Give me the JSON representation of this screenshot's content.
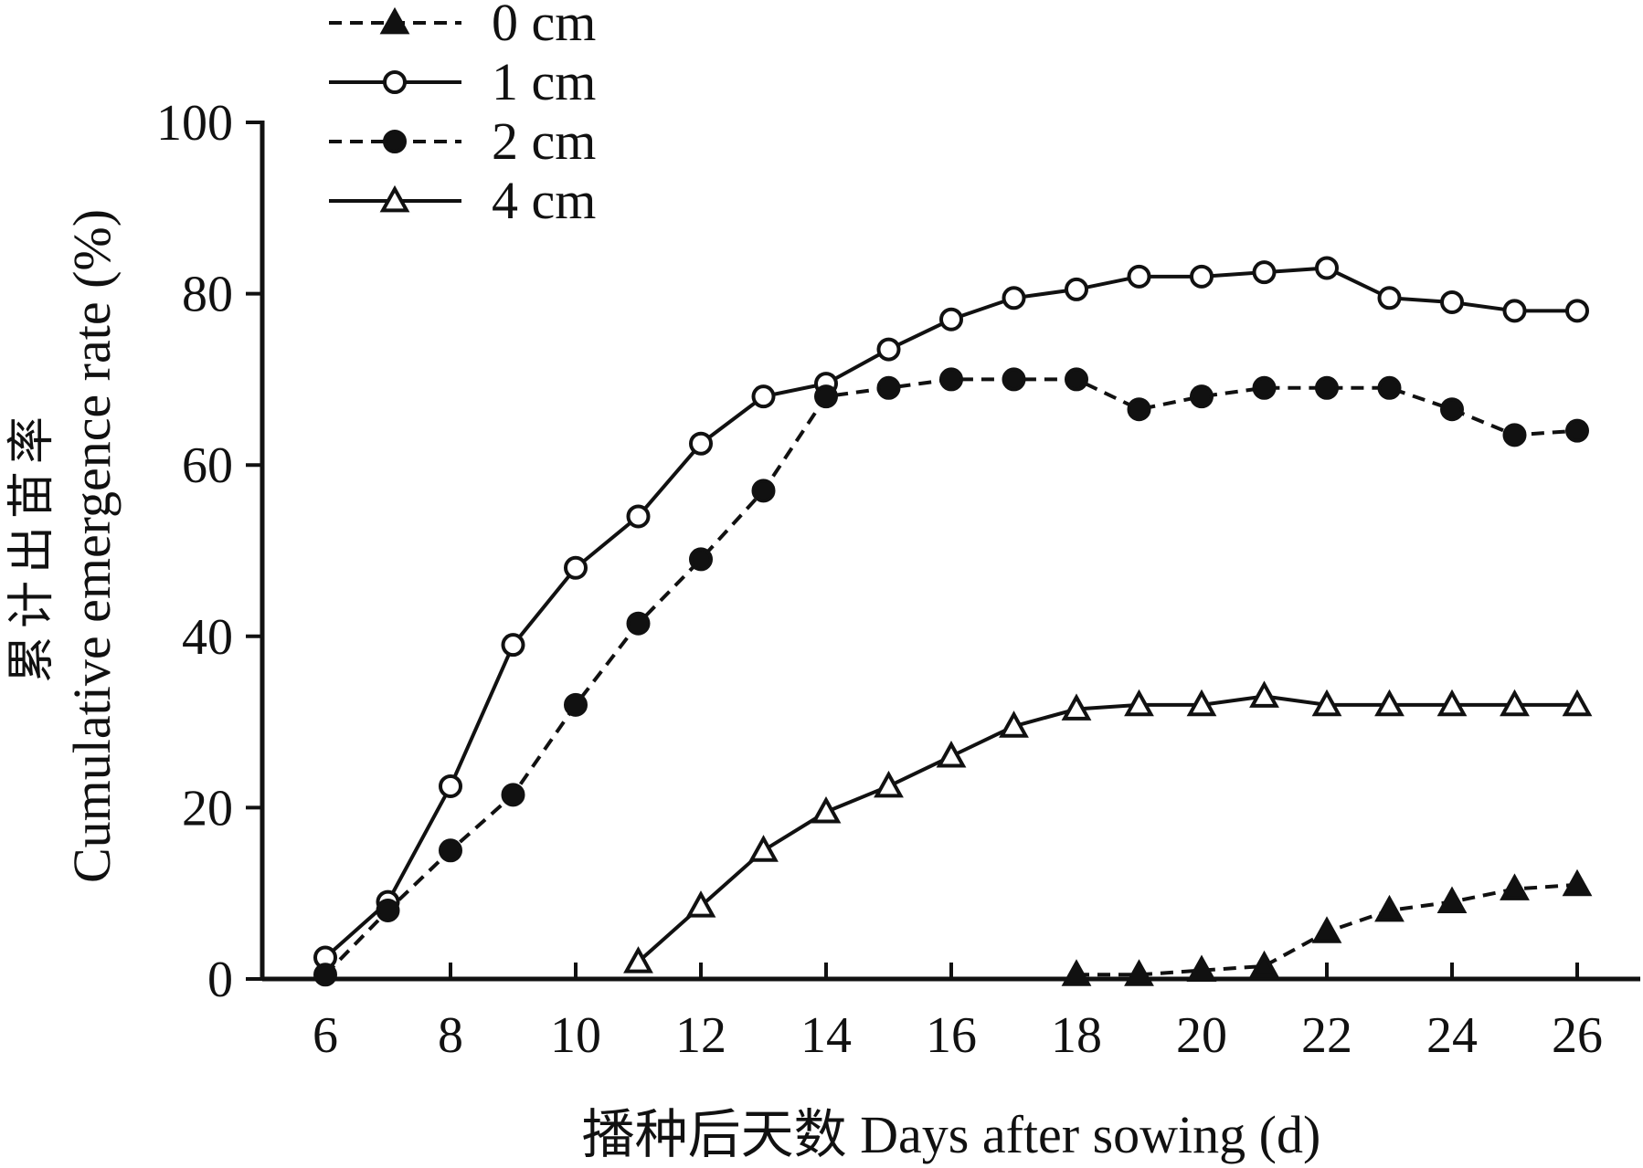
{
  "chart_data": {
    "type": "line",
    "title": "",
    "xlabel": "播种后天数 Days after sowing (d)",
    "ylabel_cn": "累计出苗率",
    "ylabel": "Cumulative emergence rate (%)",
    "xlim": [
      6,
      26
    ],
    "ylim": [
      0,
      100
    ],
    "xticks": [
      6,
      8,
      10,
      12,
      14,
      16,
      18,
      20,
      22,
      24,
      26
    ],
    "yticks": [
      0,
      20,
      40,
      60,
      80,
      100
    ],
    "grid": false,
    "legend_position": "top-left",
    "series": [
      {
        "name": "0 cm",
        "marker": "filled-triangle",
        "dash": true,
        "x": [
          18,
          19,
          20,
          21,
          22,
          23,
          24,
          25,
          26
        ],
        "y": [
          0.5,
          0.5,
          1,
          1.5,
          5.5,
          8,
          9,
          10.5,
          11
        ]
      },
      {
        "name": "1 cm",
        "marker": "open-circle",
        "dash": false,
        "x": [
          6,
          7,
          8,
          9,
          10,
          11,
          12,
          13,
          14,
          15,
          16,
          17,
          18,
          19,
          20,
          21,
          22,
          23,
          24,
          25,
          26
        ],
        "y": [
          2.5,
          9,
          22.5,
          39,
          48,
          54,
          62.5,
          68,
          69.5,
          73.5,
          77,
          79.5,
          80.5,
          82,
          82,
          82.5,
          83,
          79.5,
          79,
          78,
          78
        ]
      },
      {
        "name": "2 cm",
        "marker": "filled-circle",
        "dash": true,
        "x": [
          6,
          7,
          8,
          9,
          10,
          11,
          12,
          13,
          14,
          15,
          16,
          17,
          18,
          19,
          20,
          21,
          22,
          23,
          24,
          25,
          26
        ],
        "y": [
          0.5,
          8,
          15,
          21.5,
          32,
          41.5,
          49,
          57,
          68,
          69,
          70,
          70,
          70,
          66.5,
          68,
          69,
          69,
          69,
          66.5,
          63.5,
          64
        ]
      },
      {
        "name": "4 cm",
        "marker": "open-triangle",
        "dash": false,
        "x": [
          11,
          12,
          13,
          14,
          15,
          16,
          17,
          18,
          19,
          20,
          21,
          22,
          23,
          24,
          25,
          26
        ],
        "y": [
          2,
          8.5,
          15,
          19.5,
          22.5,
          26,
          29.5,
          31.5,
          32,
          32,
          33,
          32,
          32,
          32,
          32,
          32
        ]
      }
    ]
  }
}
